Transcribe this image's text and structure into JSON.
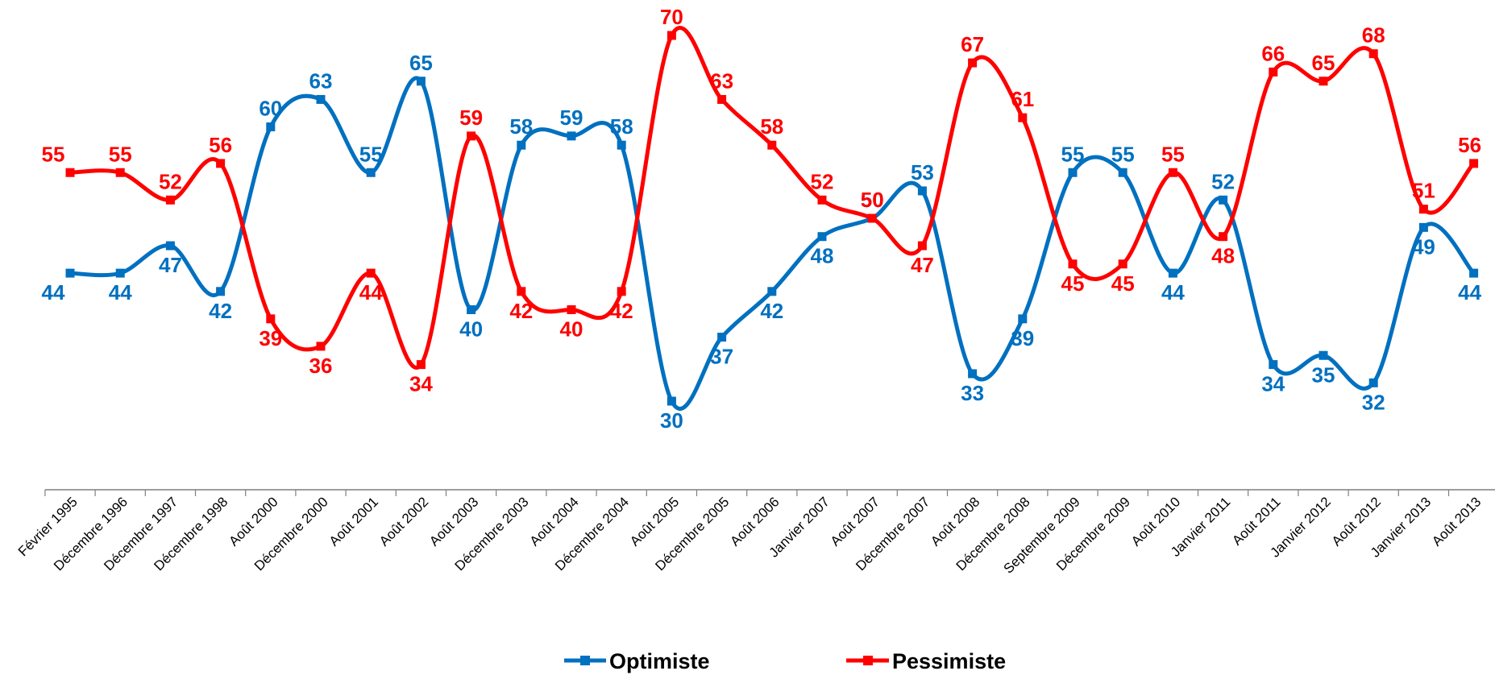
{
  "chart_data": {
    "type": "line",
    "categories": [
      "Février 1995",
      "Décembre 1996",
      "Décembre 1997",
      "Décembre 1998",
      "Août 2000",
      "Décembre 2000",
      "Août 2001",
      "Août 2002",
      "Août 2003",
      "Décembre 2003",
      "Août 2004",
      "Décembre 2004",
      "Août 2005",
      "Décembre 2005",
      "Août 2006",
      "Janvier 2007",
      "Août 2007",
      "Décembre 2007",
      "Août 2008",
      "Décembre 2008",
      "Septembre 2009",
      "Décembre 2009",
      "Août 2010",
      "Janvier 2011",
      "Août 2011",
      "Janvier 2012",
      "Août 2012",
      "Janvier 2013",
      "Août 2013"
    ],
    "series": [
      {
        "name": "Optimiste",
        "color": "#0070C0",
        "values": [
          44,
          44,
          47,
          42,
          60,
          63,
          55,
          65,
          40,
          58,
          59,
          58,
          30,
          37,
          42,
          48,
          50,
          53,
          33,
          39,
          55,
          55,
          44,
          52,
          34,
          35,
          32,
          49,
          44
        ]
      },
      {
        "name": "Pessimiste",
        "color": "#FF0000",
        "values": [
          55,
          55,
          52,
          56,
          39,
          36,
          44,
          34,
          59,
          42,
          40,
          42,
          70,
          63,
          58,
          52,
          50,
          47,
          67,
          61,
          45,
          45,
          55,
          48,
          66,
          65,
          68,
          51,
          56
        ]
      }
    ],
    "title": "",
    "xlabel": "",
    "ylabel": "",
    "ylim": [
      25,
      75
    ],
    "grid": false,
    "legend": "bottom"
  }
}
